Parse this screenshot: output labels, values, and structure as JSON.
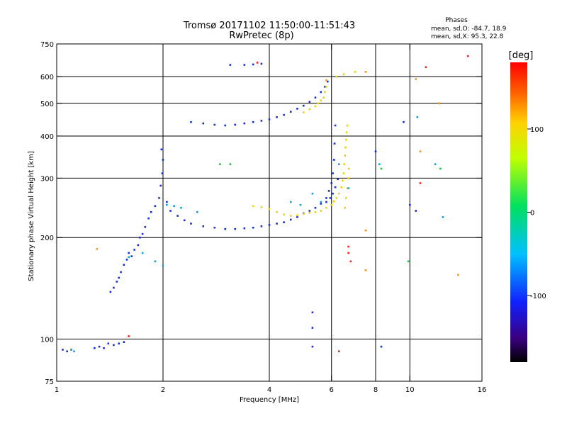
{
  "title": "Tromsø 20171102 11:50:00-11:51:43",
  "subtitle": "RwPretec (8p)",
  "phase_box": {
    "heading": "Phases",
    "line_o": "mean, sd,O: -84.7, 18.9",
    "line_x": "mean, sd,X:  95.3, 22.8"
  },
  "colorbar": {
    "unit": "[deg]",
    "ticks": [
      {
        "value": 100,
        "label": "100"
      },
      {
        "value": 0,
        "label": "0"
      },
      {
        "value": -100,
        "label": "-100"
      }
    ],
    "range": [
      -180,
      180
    ]
  },
  "chart_data": {
    "type": "scatter",
    "xlabel": "Frequency [MHz]",
    "ylabel": "Stationary phase Virtual Height [km]",
    "xscale": "log",
    "yscale": "log",
    "xlim": [
      1,
      16
    ],
    "ylim": [
      75,
      750
    ],
    "xticks": [
      {
        "v": 1,
        "label": "1"
      },
      {
        "v": 2,
        "label": "2"
      },
      {
        "v": 4,
        "label": "4"
      },
      {
        "v": 6,
        "label": "6"
      },
      {
        "v": 8,
        "label": "8"
      },
      {
        "v": 10,
        "label": "10"
      },
      {
        "v": 16,
        "label": "16"
      }
    ],
    "yticks": [
      {
        "v": 75,
        "label": "75"
      },
      {
        "v": 100,
        "label": "100"
      },
      {
        "v": 200,
        "label": "200"
      },
      {
        "v": 300,
        "label": "300"
      },
      {
        "v": 400,
        "label": "400"
      },
      {
        "v": 500,
        "label": "500"
      },
      {
        "v": 600,
        "label": "600"
      },
      {
        "v": 750,
        "label": "750"
      }
    ],
    "xgrid": [
      2,
      4,
      6,
      8,
      10
    ],
    "ygrid": [
      100,
      200,
      300,
      400,
      500,
      600
    ],
    "series": [
      {
        "mode": "O",
        "color": "#1530d0",
        "points": [
          [
            1.04,
            93
          ],
          [
            1.07,
            92
          ],
          [
            1.1,
            93
          ],
          [
            1.28,
            94
          ],
          [
            1.32,
            95
          ],
          [
            1.36,
            94
          ],
          [
            1.4,
            97
          ],
          [
            1.45,
            96
          ],
          [
            1.5,
            97
          ],
          [
            1.55,
            98
          ],
          [
            1.42,
            138
          ],
          [
            1.45,
            142
          ],
          [
            1.48,
            148
          ],
          [
            1.5,
            152
          ],
          [
            1.52,
            158
          ],
          [
            1.55,
            166
          ],
          [
            1.58,
            172
          ],
          [
            1.6,
            180
          ],
          [
            1.63,
            176
          ],
          [
            1.66,
            184
          ],
          [
            1.7,
            190
          ],
          [
            1.72,
            200
          ],
          [
            1.75,
            205
          ],
          [
            1.78,
            215
          ],
          [
            1.82,
            228
          ],
          [
            1.85,
            238
          ],
          [
            1.9,
            248
          ],
          [
            1.95,
            262
          ],
          [
            1.97,
            285
          ],
          [
            1.99,
            310
          ],
          [
            2.0,
            340
          ],
          [
            1.98,
            365
          ],
          [
            2.05,
            255
          ],
          [
            2.1,
            240
          ],
          [
            2.2,
            232
          ],
          [
            2.3,
            225
          ],
          [
            2.4,
            220
          ],
          [
            2.6,
            216
          ],
          [
            2.8,
            214
          ],
          [
            3.0,
            212
          ],
          [
            3.2,
            212
          ],
          [
            3.4,
            213
          ],
          [
            3.6,
            214
          ],
          [
            3.8,
            216
          ],
          [
            4.0,
            218
          ],
          [
            4.2,
            220
          ],
          [
            4.4,
            222
          ],
          [
            4.6,
            226
          ],
          [
            4.8,
            230
          ],
          [
            5.0,
            236
          ],
          [
            5.2,
            240
          ],
          [
            5.4,
            245
          ],
          [
            5.6,
            252
          ],
          [
            5.8,
            262
          ],
          [
            5.9,
            275
          ],
          [
            6.0,
            290
          ],
          [
            6.05,
            310
          ],
          [
            6.1,
            340
          ],
          [
            6.12,
            380
          ],
          [
            6.15,
            430
          ],
          [
            5.8,
            255
          ],
          [
            5.95,
            262
          ],
          [
            6.05,
            270
          ],
          [
            6.15,
            282
          ],
          [
            6.25,
            298
          ],
          [
            2.4,
            440
          ],
          [
            2.6,
            436
          ],
          [
            2.8,
            432
          ],
          [
            3.0,
            430
          ],
          [
            3.2,
            432
          ],
          [
            3.4,
            436
          ],
          [
            3.6,
            440
          ],
          [
            3.8,
            444
          ],
          [
            4.0,
            448
          ],
          [
            4.2,
            455
          ],
          [
            4.4,
            462
          ],
          [
            4.6,
            472
          ],
          [
            4.8,
            482
          ],
          [
            5.0,
            492
          ],
          [
            5.2,
            505
          ],
          [
            5.4,
            520
          ],
          [
            5.6,
            540
          ],
          [
            5.75,
            560
          ],
          [
            5.85,
            580
          ],
          [
            3.1,
            650
          ],
          [
            3.4,
            650
          ],
          [
            3.6,
            652
          ],
          [
            3.8,
            655
          ],
          [
            9.6,
            440
          ],
          [
            10.0,
            250
          ],
          [
            10.4,
            240
          ],
          [
            8.3,
            95
          ],
          [
            5.3,
            120
          ],
          [
            5.3,
            108
          ],
          [
            5.3,
            95
          ],
          [
            8.0,
            360
          ]
        ]
      },
      {
        "mode": "X",
        "color": "#f0d000",
        "points": [
          [
            3.6,
            248
          ],
          [
            3.8,
            246
          ],
          [
            4.0,
            243
          ],
          [
            4.2,
            238
          ],
          [
            4.4,
            234
          ],
          [
            4.6,
            232
          ],
          [
            4.8,
            233
          ],
          [
            5.0,
            235
          ],
          [
            5.2,
            237
          ],
          [
            5.4,
            238
          ],
          [
            5.6,
            240
          ],
          [
            5.8,
            245
          ],
          [
            6.0,
            250
          ],
          [
            6.1,
            256
          ],
          [
            6.2,
            262
          ],
          [
            6.3,
            270
          ],
          [
            6.4,
            282
          ],
          [
            6.45,
            295
          ],
          [
            6.5,
            310
          ],
          [
            6.52,
            330
          ],
          [
            6.55,
            350
          ],
          [
            6.57,
            370
          ],
          [
            6.6,
            390
          ],
          [
            6.62,
            410
          ],
          [
            6.65,
            430
          ],
          [
            6.55,
            245
          ],
          [
            6.6,
            262
          ],
          [
            6.65,
            280
          ],
          [
            6.7,
            300
          ],
          [
            6.72,
            320
          ],
          [
            5.0,
            470
          ],
          [
            5.2,
            480
          ],
          [
            5.4,
            490
          ],
          [
            5.5,
            500
          ],
          [
            5.6,
            510
          ],
          [
            5.7,
            520
          ],
          [
            5.75,
            540
          ],
          [
            5.8,
            560
          ],
          [
            6.2,
            600
          ],
          [
            6.5,
            610
          ],
          [
            7.0,
            620
          ]
        ]
      },
      {
        "mode": "other",
        "color": "#10a0e0",
        "points": [
          [
            1.1,
            93
          ],
          [
            1.12,
            92
          ],
          [
            1.6,
            175
          ],
          [
            1.75,
            180
          ],
          [
            1.9,
            170
          ],
          [
            2.0,
            165
          ],
          [
            2.05,
            250
          ],
          [
            2.15,
            248
          ],
          [
            2.25,
            245
          ],
          [
            2.5,
            238
          ],
          [
            4.6,
            255
          ],
          [
            4.9,
            250
          ],
          [
            5.3,
            270
          ],
          [
            5.6,
            255
          ],
          [
            6.3,
            330
          ],
          [
            6.7,
            280
          ],
          [
            12.4,
            230
          ],
          [
            8.2,
            330
          ],
          [
            10.5,
            455
          ],
          [
            11.8,
            330
          ]
        ]
      },
      {
        "mode": "other",
        "color": "#ff2020",
        "points": [
          [
            3.7,
            660
          ],
          [
            6.3,
            92
          ],
          [
            6.7,
            188
          ],
          [
            6.7,
            180
          ],
          [
            6.8,
            170
          ],
          [
            11.1,
            640
          ],
          [
            14.6,
            690
          ],
          [
            10.7,
            290
          ],
          [
            1.6,
            102
          ]
        ]
      },
      {
        "mode": "other",
        "color": "#ff9020",
        "points": [
          [
            1.3,
            185
          ],
          [
            10.4,
            590
          ],
          [
            7.5,
            620
          ],
          [
            12.1,
            500
          ],
          [
            13.7,
            155
          ],
          [
            7.5,
            210
          ],
          [
            7.5,
            160
          ],
          [
            5.8,
            585
          ],
          [
            10.7,
            360
          ]
        ]
      },
      {
        "mode": "other",
        "color": "#20c040",
        "points": [
          [
            3.1,
            330
          ],
          [
            12.2,
            320
          ],
          [
            9.9,
            170
          ],
          [
            8.3,
            320
          ],
          [
            2.9,
            330
          ]
        ]
      }
    ]
  }
}
